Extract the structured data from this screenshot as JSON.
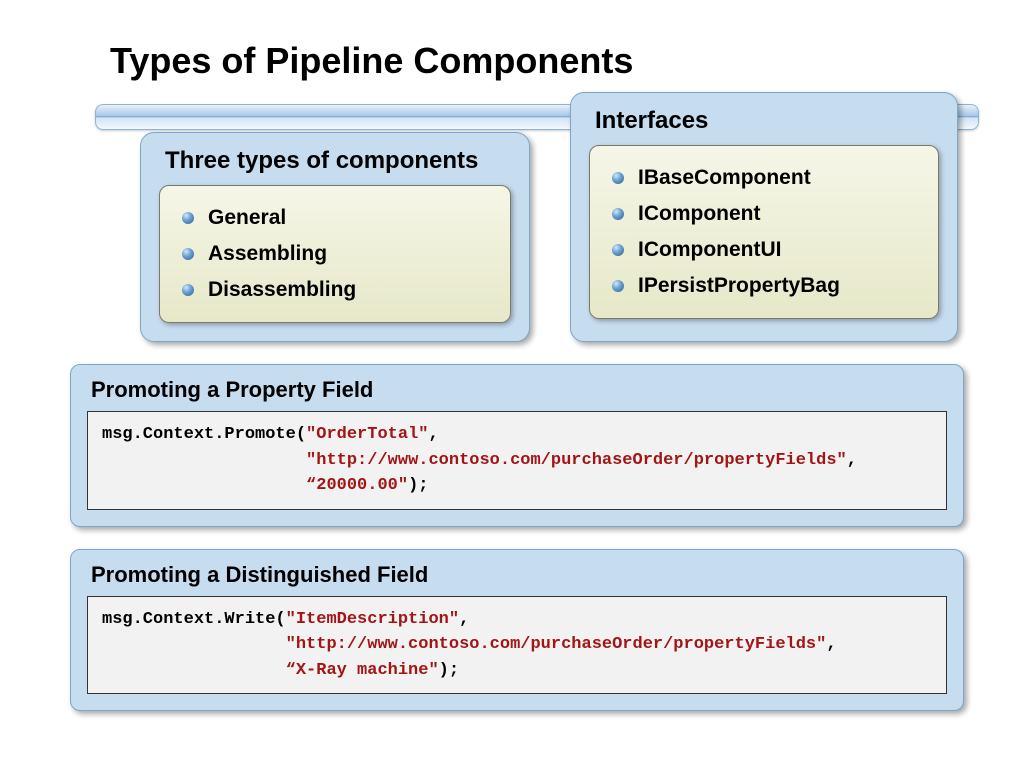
{
  "title": "Types of Pipeline Components",
  "types_panel": {
    "title": "Three types of components",
    "items": [
      "General",
      "Assembling",
      "Disassembling"
    ]
  },
  "interfaces_panel": {
    "title": "Interfaces",
    "items": [
      "IBaseComponent",
      "IComponent",
      "IComponentUI",
      "IPersistPropertyBag"
    ]
  },
  "code1": {
    "title": "Promoting a Property Field",
    "pre1": "msg.Context.Promote(",
    "str1": "\"OrderTotal\"",
    "sep1": ",",
    "indent2": "                    ",
    "str2": "\"http://www.contoso.com/purchaseOrder/propertyFields\"",
    "sep2": ",",
    "indent3": "                    ",
    "str3": "“20000.00\"",
    "post": ");"
  },
  "code2": {
    "title": "Promoting a Distinguished Field",
    "pre1": "msg.Context.Write(",
    "str1": "\"ItemDescription\"",
    "sep1": ",",
    "indent2": "                  ",
    "str2": "\"http://www.contoso.com/purchaseOrder/propertyFields\"",
    "sep2": ",",
    "indent3": "                  ",
    "str3": "“X-Ray machine\"",
    "post": ");"
  },
  "colors": {
    "panel_bg": "#c6dcef",
    "panel_border": "#7da6cd",
    "inner_bg_top": "#f6f6e8",
    "inner_bg_bottom": "#e6e8c8",
    "code_bg": "#f2f2f2",
    "string_color": "#a31515"
  }
}
